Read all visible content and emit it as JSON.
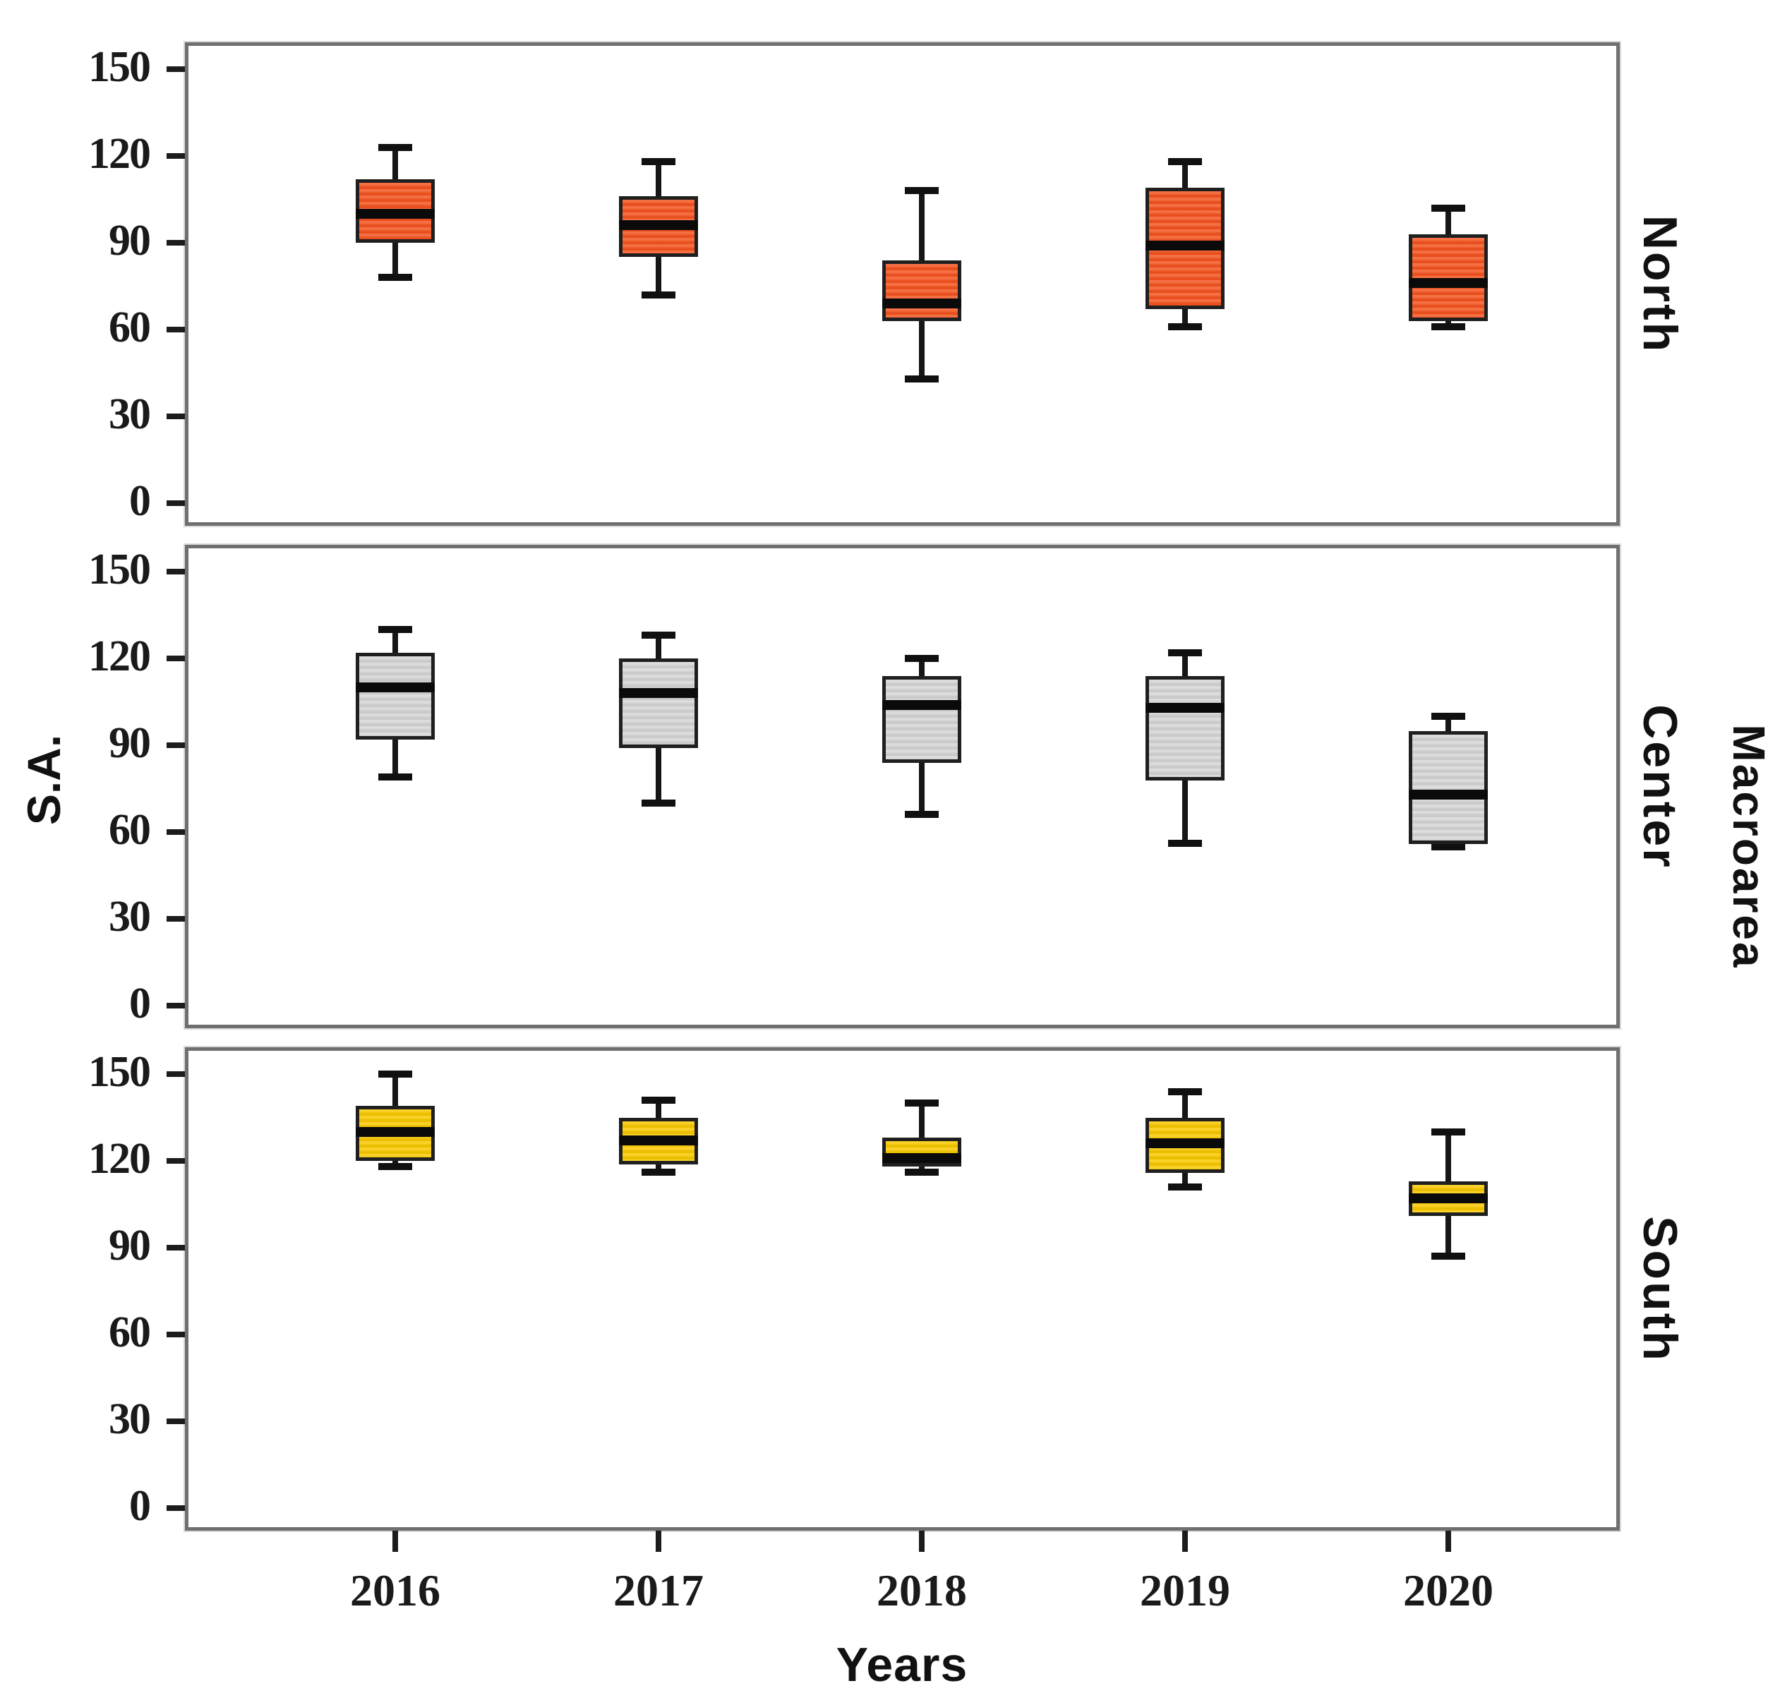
{
  "chart_data": {
    "type": "boxplot",
    "title": "",
    "xlabel": "Years",
    "ylabel": "S.A.",
    "right_axis_label": "Macroarea",
    "categories": [
      "2016",
      "2017",
      "2018",
      "2019",
      "2020"
    ],
    "yticks": [
      "0",
      "30",
      "60",
      "90",
      "120",
      "150"
    ],
    "ylim": [
      0,
      150
    ],
    "grid": "off",
    "legend": "none",
    "panels": [
      {
        "label": "North",
        "fill_color": "#F4531F",
        "boxes": [
          {
            "year": "2016",
            "min": 78,
            "q1": 90,
            "median": 100,
            "q3": 112,
            "max": 123
          },
          {
            "year": "2017",
            "min": 72,
            "q1": 85,
            "median": 96,
            "q3": 106,
            "max": 118
          },
          {
            "year": "2018",
            "min": 43,
            "q1": 63,
            "median": 69,
            "q3": 84,
            "max": 108
          },
          {
            "year": "2019",
            "min": 61,
            "q1": 67,
            "median": 89,
            "q3": 109,
            "max": 118
          },
          {
            "year": "2020",
            "min": 61,
            "q1": 63,
            "median": 76,
            "q3": 93,
            "max": 102
          }
        ]
      },
      {
        "label": "Center",
        "fill_color": "#D5D5D5",
        "boxes": [
          {
            "year": "2016",
            "min": 79,
            "q1": 92,
            "median": 110,
            "q3": 122,
            "max": 130
          },
          {
            "year": "2017",
            "min": 70,
            "q1": 89,
            "median": 108,
            "q3": 120,
            "max": 128
          },
          {
            "year": "2018",
            "min": 66,
            "q1": 84,
            "median": 104,
            "q3": 114,
            "max": 120
          },
          {
            "year": "2019",
            "min": 56,
            "q1": 78,
            "median": 103,
            "q3": 114,
            "max": 122
          },
          {
            "year": "2020",
            "min": 55,
            "q1": 56,
            "median": 73,
            "q3": 95,
            "max": 100
          }
        ]
      },
      {
        "label": "South",
        "fill_color": "#F8C800",
        "boxes": [
          {
            "year": "2016",
            "min": 118,
            "q1": 120,
            "median": 130,
            "q3": 139,
            "max": 150
          },
          {
            "year": "2017",
            "min": 116,
            "q1": 119,
            "median": 127,
            "q3": 135,
            "max": 141
          },
          {
            "year": "2018",
            "min": 116,
            "q1": 118,
            "median": 121,
            "q3": 128,
            "max": 140
          },
          {
            "year": "2019",
            "min": 111,
            "q1": 116,
            "median": 126,
            "q3": 135,
            "max": 144
          },
          {
            "year": "2020",
            "min": 87,
            "q1": 101,
            "median": 107,
            "q3": 113,
            "max": 130
          }
        ]
      }
    ],
    "colors": {
      "frame": "#6f6f6f",
      "box_border": "#1f1f1f",
      "whisker": "#161616",
      "median": "#0a0a0a",
      "background": "#ffffff"
    }
  }
}
